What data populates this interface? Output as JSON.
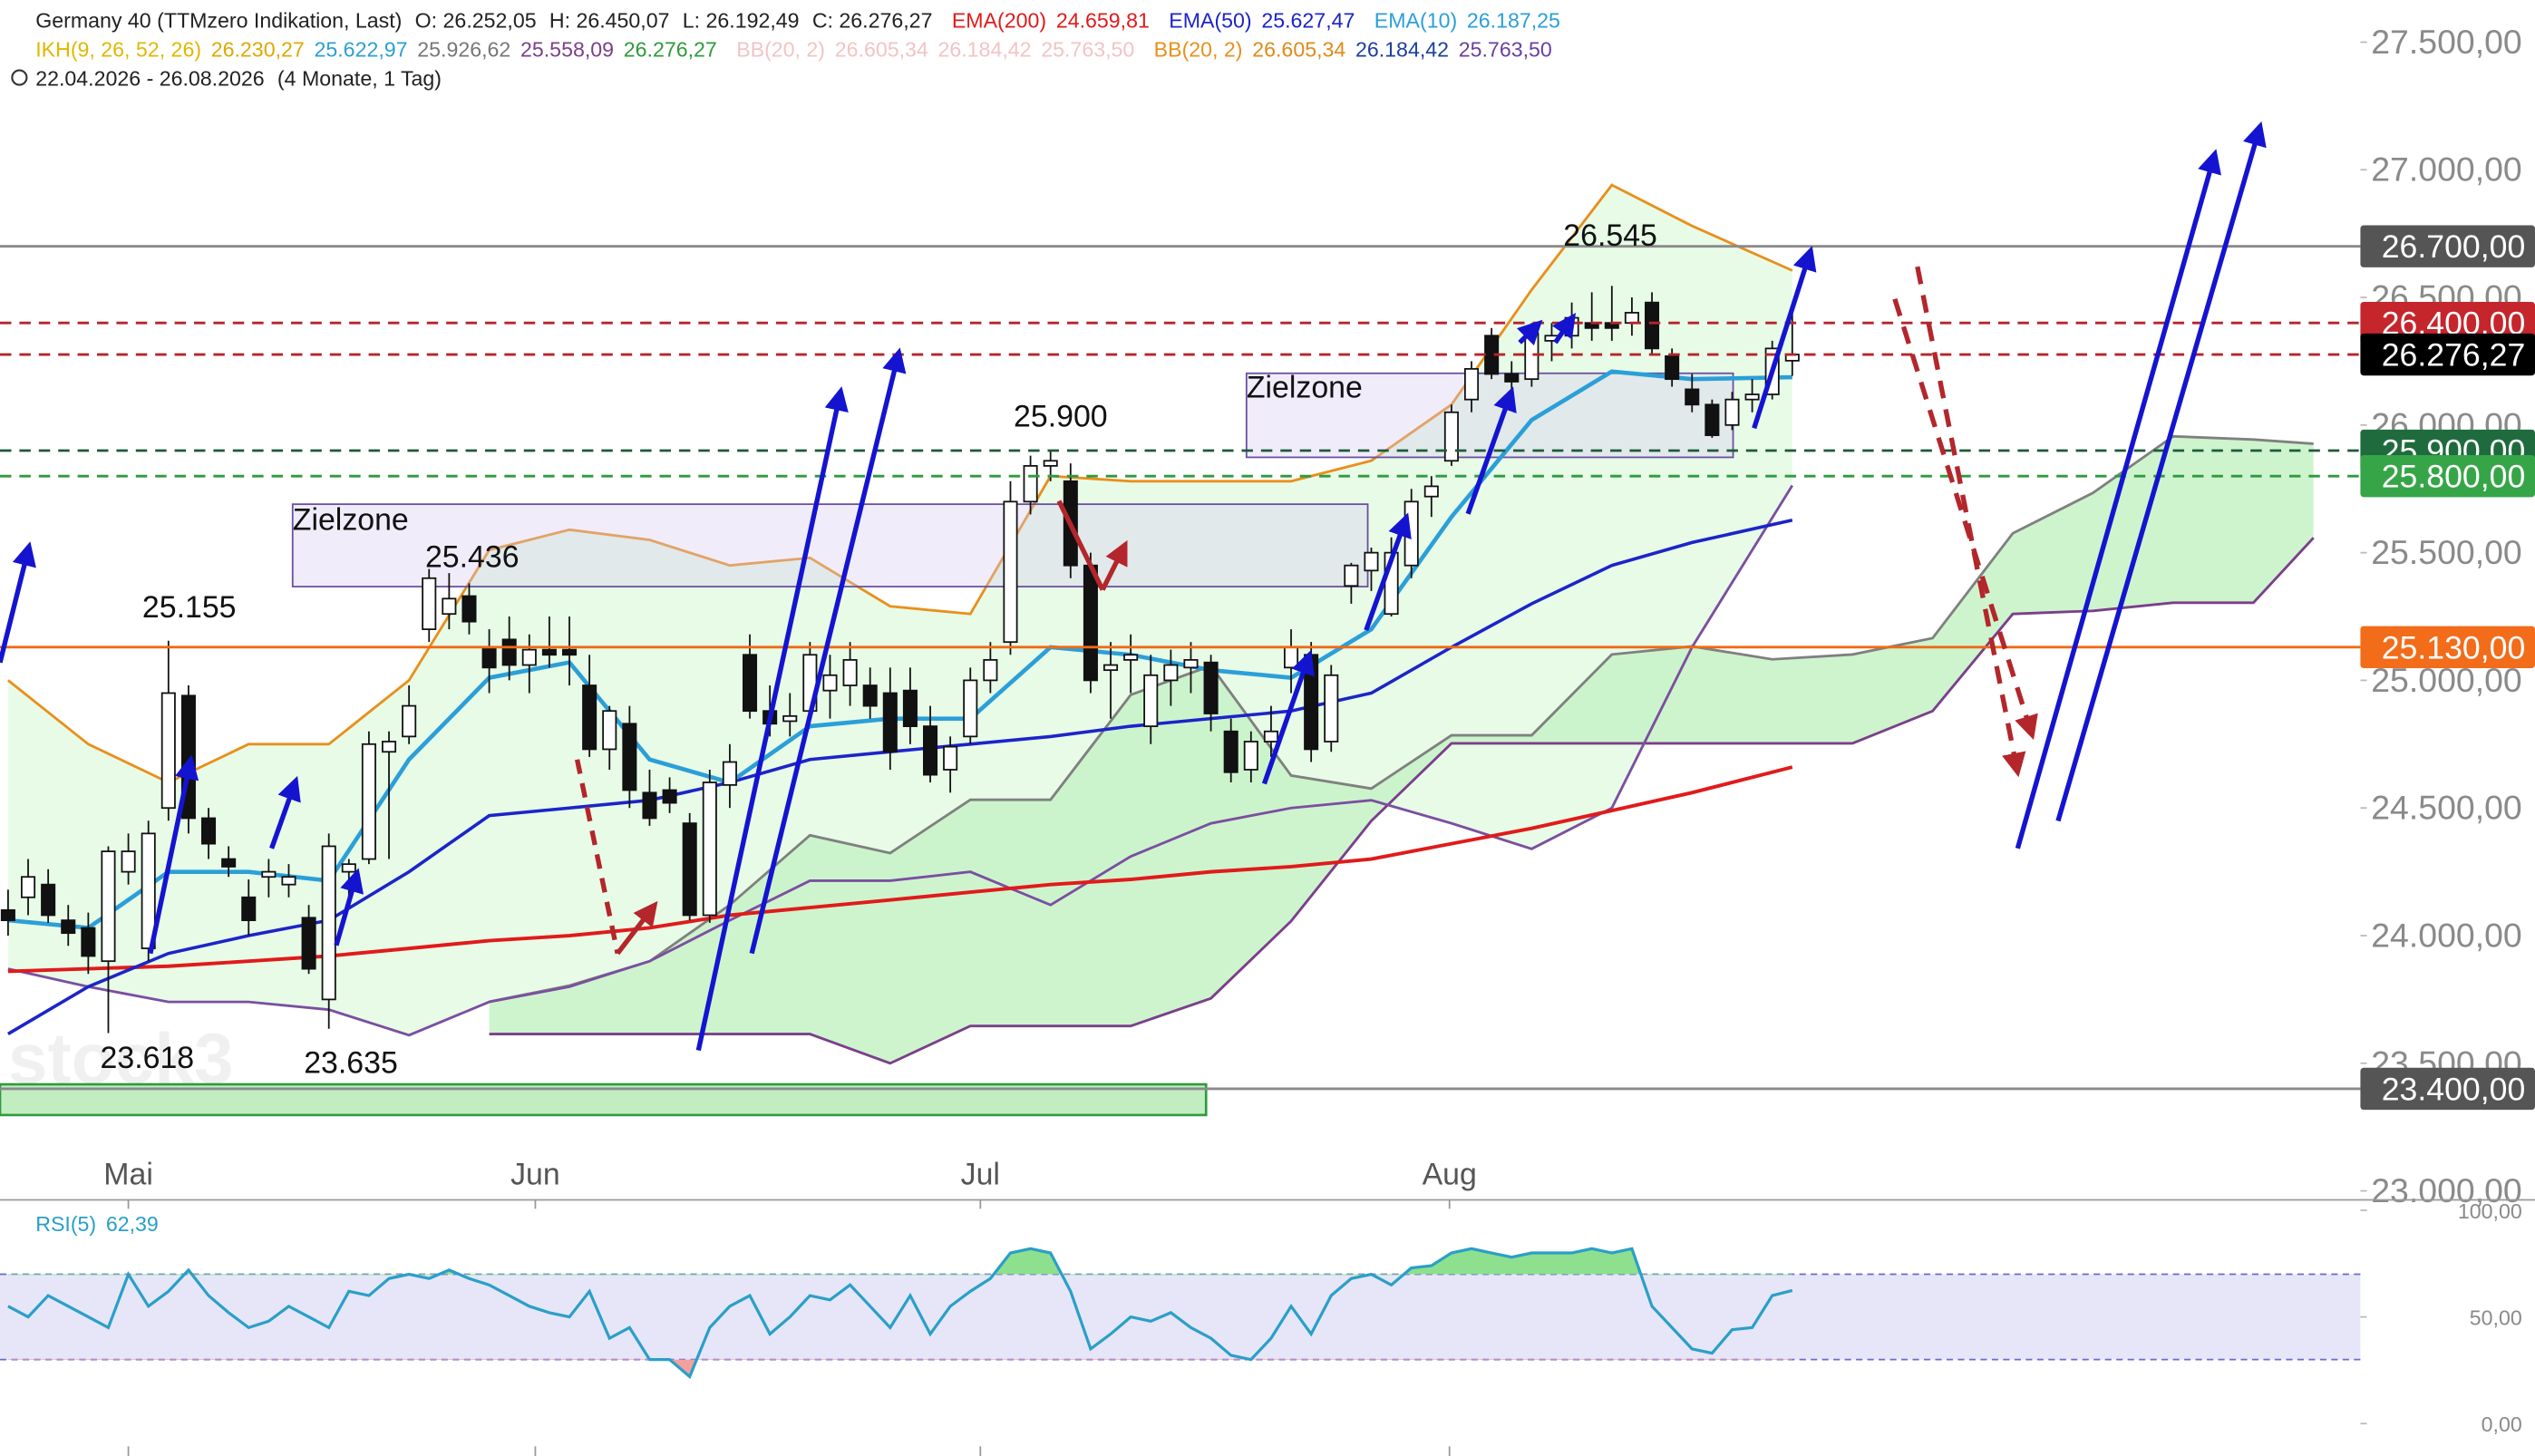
{
  "header": {
    "title": "Germany 40 (TTMzero Indikation, Last)",
    "ohlc": [
      "O: 26.252,05",
      "H: 26.450,07",
      "L: 26.192,49",
      "C: 26.276,27"
    ],
    "period": "22.04.2026 - 26.08.2026",
    "range": "(4 Monate, 1 Tag)"
  },
  "annotations": [
    "25.155",
    "23.618",
    "23.635",
    "25.436",
    "25.900",
    "26.545"
  ],
  "zones": [
    "Zielzone",
    "Zielzone"
  ],
  "watermark": "stock3",
  "chart_data": [
    {
      "type": "candlestick",
      "ylim": [
        22968,
        27665
      ],
      "grid": false,
      "yticks": [
        {
          "value": 23000,
          "label": "23.000,00"
        },
        {
          "value": 23500,
          "label": "23.500,00"
        },
        {
          "value": 24000,
          "label": "24.000,00"
        },
        {
          "value": 24500,
          "label": "24.500,00"
        },
        {
          "value": 25000,
          "label": "25.000,00"
        },
        {
          "value": 25500,
          "label": "25.500,00"
        },
        {
          "value": 26000,
          "label": "26.000,00"
        },
        {
          "value": 26500,
          "label": "26.500,00"
        },
        {
          "value": 27000,
          "label": "27.000,00"
        },
        {
          "value": 27500,
          "label": "27.500,00"
        }
      ],
      "xticks": [
        {
          "value": 6,
          "label": "Mai"
        },
        {
          "value": 26.3,
          "label": "Jun"
        },
        {
          "value": 48.5,
          "label": "Jul"
        },
        {
          "value": 71.9,
          "label": "Aug"
        }
      ],
      "open": [
        24100,
        24150,
        24200,
        24060,
        24030,
        23900,
        24250,
        23950,
        24500,
        24940,
        24460,
        24300,
        24150,
        24230,
        24200,
        24070,
        23750,
        24250,
        24300,
        24720,
        24780,
        25200,
        25260,
        25330,
        25130,
        25160,
        25060,
        25120,
        25120,
        24980,
        24730,
        24830,
        24560,
        24570,
        24440,
        24080,
        24590,
        25100,
        24880,
        24840,
        24880,
        24960,
        24980,
        24980,
        24950,
        24960,
        24820,
        24650,
        24780,
        25000,
        25150,
        25700,
        25840,
        25780,
        25450,
        25040,
        25080,
        24820,
        25000,
        25050,
        25070,
        24800,
        24650,
        24760,
        25050,
        25100,
        24760,
        25370,
        25430,
        25260,
        25450,
        25720,
        25860,
        26100,
        26350,
        26200,
        26180,
        26330,
        26350,
        26400,
        26400,
        26400,
        26480,
        26270,
        26140,
        26080,
        26000,
        26100,
        26120,
        26252.05
      ],
      "high": [
        24180,
        24300,
        24260,
        24120,
        24090,
        24350,
        24400,
        24450,
        25155,
        24980,
        24500,
        24350,
        24220,
        24300,
        24280,
        24120,
        24400,
        24300,
        24800,
        24800,
        24980,
        25436,
        25420,
        25380,
        25200,
        25250,
        25180,
        25250,
        25250,
        25100,
        24900,
        24900,
        24650,
        24620,
        24480,
        24650,
        24750,
        25180,
        24980,
        24950,
        25150,
        25100,
        25150,
        25050,
        25050,
        25050,
        24900,
        24780,
        25050,
        25150,
        25780,
        25880,
        25900,
        25850,
        25500,
        25150,
        25180,
        25100,
        25120,
        25150,
        25100,
        24850,
        24800,
        24900,
        25200,
        25150,
        25060,
        25460,
        25520,
        25560,
        25750,
        25800,
        26080,
        26250,
        26380,
        26250,
        26400,
        26400,
        26480,
        26520,
        26545,
        26500,
        26520,
        26300,
        26200,
        26100,
        26130,
        26180,
        26330,
        26450.07
      ],
      "low": [
        24000,
        24080,
        24050,
        23960,
        23850,
        23618,
        24200,
        23900,
        24450,
        24400,
        24300,
        24230,
        24000,
        24150,
        24150,
        23850,
        23635,
        24150,
        24280,
        24300,
        24750,
        25150,
        25200,
        25180,
        24950,
        25000,
        24950,
        25050,
        24980,
        24700,
        24650,
        24500,
        24430,
        24480,
        24060,
        24050,
        24500,
        24850,
        24780,
        24780,
        24850,
        24850,
        24900,
        24850,
        24650,
        24750,
        24600,
        24560,
        24750,
        24950,
        25100,
        25650,
        25780,
        25400,
        24950,
        24850,
        24950,
        24750,
        24900,
        24950,
        24800,
        24600,
        24600,
        24700,
        24950,
        24680,
        24720,
        25300,
        25350,
        25250,
        25400,
        25640,
        25840,
        26050,
        26180,
        26120,
        26150,
        26250,
        26300,
        26330,
        26330,
        26350,
        26280,
        26150,
        26050,
        25950,
        25980,
        26050,
        26100,
        26192.49
      ],
      "close": [
        24060,
        24230,
        24080,
        24010,
        23920,
        24330,
        24330,
        24400,
        24950,
        24460,
        24360,
        24270,
        24060,
        24250,
        24230,
        23870,
        24350,
        24280,
        24750,
        24760,
        24900,
        25400,
        25320,
        25230,
        25050,
        25060,
        25120,
        25100,
        25100,
        24730,
        24880,
        24570,
        24460,
        24520,
        24080,
        24600,
        24680,
        24880,
        24830,
        24860,
        25100,
        25020,
        25080,
        24900,
        24720,
        24820,
        24630,
        24740,
        25000,
        25080,
        25700,
        25840,
        25860,
        25450,
        25000,
        25060,
        25100,
        25020,
        25060,
        25080,
        24870,
        24640,
        24760,
        24800,
        25130,
        24730,
        25020,
        25450,
        25500,
        25500,
        25700,
        25760,
        26050,
        26220,
        26200,
        26170,
        26360,
        26350,
        26420,
        26380,
        26380,
        26440,
        26300,
        26180,
        26080,
        25960,
        26100,
        26120,
        26300,
        26276.27
      ],
      "ichimoku": {
        "name": "IKH(9, 26, 52, 26)",
        "labels": [
          "26.230,27",
          "25.622,97",
          "25.926,62",
          "25.558,09",
          "26.276,27"
        ],
        "label_colors": [
          "#e0a800",
          "#2a9fd6",
          "#777777",
          "#7b3f8a",
          "#2e9a3a"
        ],
        "color": "#e0b800",
        "fill": "#c9f3c9",
        "span_a_color": "#808080",
        "span_b_color": "#7b3f8a",
        "x": [
          24,
          28,
          32,
          36,
          40,
          44,
          48,
          52,
          56,
          60,
          64,
          68,
          72,
          76,
          80,
          84,
          88,
          92,
          96,
          100,
          104,
          108,
          112,
          115
        ],
        "span_a": [
          23741,
          23804,
          23899,
          24120,
          24393,
          24323,
          24532,
          24532,
          24943,
          25057,
          24627,
          24576,
          24785,
          24785,
          25101,
          25133,
          25082,
          25101,
          25165,
          25576,
          25734,
          25956,
          25943,
          25926.62
        ],
        "span_b": [
          23614,
          23614,
          23614,
          23614,
          23614,
          23500,
          23646,
          23646,
          23646,
          23754,
          24057,
          24449,
          24753,
          24753,
          24753,
          24753,
          24753,
          24753,
          24880,
          25260,
          25272,
          25304,
          25304,
          25558.09
        ]
      },
      "bb_faded": {
        "name": "BB(20, 2)",
        "labels": [
          "26.605,34",
          "26.184,42",
          "25.763,50"
        ],
        "color": "#f2c4c4"
      },
      "bb": {
        "name": "BB(20, 2)",
        "labels": [
          "26.605,34",
          "26.184,42",
          "25.763,50"
        ],
        "label_colors": [
          "#e08a1a",
          "#1c3fa0",
          "#6a3fa0"
        ],
        "color": "#e8901c",
        "lower_color": "#7b4fa0",
        "fill": "#e7fbe7",
        "x": [
          0,
          4,
          8,
          12,
          16,
          20,
          24,
          28,
          32,
          36,
          40,
          44,
          48,
          52,
          56,
          60,
          64,
          68,
          72,
          76,
          80,
          84,
          89
        ],
        "upper": [
          25000,
          24750,
          24600,
          24750,
          24750,
          25000,
          25510,
          25590,
          25550,
          25450,
          25480,
          25290,
          25260,
          25800,
          25780,
          25780,
          25780,
          25860,
          26080,
          26530,
          26940,
          26780,
          26605.34
        ],
        "lower": [
          23870,
          23800,
          23740,
          23740,
          23710,
          23610,
          23740,
          23800,
          23900,
          24060,
          24215,
          24215,
          24250,
          24120,
          24310,
          24440,
          24500,
          24530,
          24440,
          24340,
          24500,
          25130,
          25763.5
        ]
      },
      "series": [
        {
          "name": "EMA(200)",
          "label": "24.659,81",
          "color": "#e01b1b",
          "width": 2.2,
          "x": [
            0,
            4,
            8,
            12,
            16,
            20,
            24,
            28,
            32,
            36,
            40,
            44,
            48,
            52,
            56,
            60,
            64,
            68,
            72,
            76,
            80,
            84,
            89
          ],
          "values": [
            23860,
            23870,
            23880,
            23900,
            23920,
            23950,
            23980,
            24000,
            24030,
            24080,
            24110,
            24140,
            24170,
            24200,
            24220,
            24250,
            24270,
            24300,
            24360,
            24420,
            24490,
            24560,
            24659.81
          ]
        },
        {
          "name": "EMA(50)",
          "label": "25.627,47",
          "color": "#1c24c8",
          "width": 2,
          "x": [
            0,
            4,
            8,
            12,
            16,
            20,
            24,
            28,
            32,
            36,
            40,
            44,
            48,
            52,
            56,
            60,
            64,
            68,
            72,
            76,
            80,
            84,
            89
          ],
          "values": [
            23615,
            23800,
            23930,
            24000,
            24060,
            24250,
            24470,
            24500,
            24530,
            24600,
            24690,
            24720,
            24750,
            24780,
            24820,
            24850,
            24880,
            24950,
            25130,
            25300,
            25450,
            25540,
            25627.47
          ]
        },
        {
          "name": "EMA(10)",
          "label": "26.187,25",
          "color": "#2b9fd8",
          "width": 2.6,
          "x": [
            0,
            4,
            8,
            12,
            16,
            20,
            24,
            28,
            32,
            36,
            40,
            44,
            48,
            52,
            56,
            60,
            64,
            68,
            72,
            76,
            80,
            84,
            89
          ],
          "values": [
            24060,
            24030,
            24250,
            24250,
            24215,
            24690,
            25010,
            25070,
            24690,
            24600,
            24820,
            24850,
            24850,
            25130,
            25100,
            25040,
            25010,
            25200,
            25640,
            26020,
            26210,
            26180,
            26187.25
          ]
        }
      ],
      "levels": [
        {
          "value": 26700,
          "label": "26.700,00",
          "color": "#8a8a8a",
          "box": "#555555",
          "dash": false
        },
        {
          "value": 26400,
          "label": "26.400,00",
          "color": "#b3262b",
          "box": "#c4262c",
          "dash": true
        },
        {
          "value": 26276.27,
          "label": "26.276,27",
          "color": "#b3262b",
          "box": "#000000",
          "dash": true
        },
        {
          "value": 25900,
          "label": "25.900,00",
          "color": "#1d5a3a",
          "box": "#1f6b3d",
          "dash": true
        },
        {
          "value": 25800,
          "label": "25.800,00",
          "color": "#2f9a3f",
          "box": "#36a547",
          "dash": true
        },
        {
          "value": 25130,
          "label": "25.130,00",
          "color": "#f06a14",
          "box": "#f26c1a",
          "dash": false
        },
        {
          "value": 23400,
          "label": "23.400,00",
          "color": "#8a8a8a",
          "box": "#555555",
          "dash": false
        }
      ]
    },
    {
      "type": "line",
      "name": "RSI(5)",
      "label": "62,39",
      "color": "#2a9fc8",
      "ylim": [
        -15.2,
        104.5
      ],
      "yticks": [
        {
          "value": 0,
          "label": "0,00"
        },
        {
          "value": 50,
          "label": "50,00"
        },
        {
          "value": 100,
          "label": "100,00"
        }
      ],
      "bands": [
        30,
        70
      ],
      "band_fill": "#e6e6f8",
      "over_color": "#8ee08e",
      "under_color": "#f2a0a0",
      "values": [
        55,
        50,
        60,
        55,
        50,
        45,
        70,
        55,
        62,
        72,
        60,
        52,
        45,
        48,
        55,
        50,
        45,
        62,
        60,
        68,
        70,
        68,
        72,
        68,
        65,
        60,
        55,
        52,
        50,
        62,
        40,
        45,
        30,
        30,
        22,
        45,
        55,
        60,
        42,
        50,
        60,
        58,
        65,
        55,
        45,
        60,
        42,
        55,
        62,
        68,
        80,
        82,
        80,
        62,
        35,
        42,
        50,
        48,
        52,
        45,
        40,
        32,
        30,
        40,
        55,
        42,
        60,
        68,
        70,
        65,
        73,
        74,
        80,
        82,
        80,
        78,
        80,
        80,
        80,
        82,
        80,
        82,
        55,
        45,
        35,
        33,
        44,
        45,
        60,
        62.39
      ]
    }
  ]
}
